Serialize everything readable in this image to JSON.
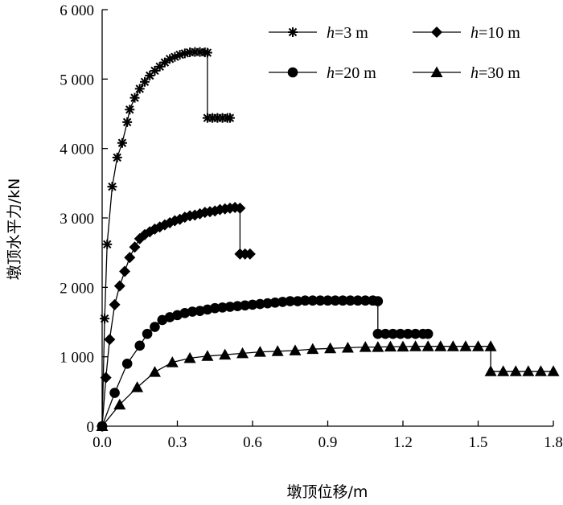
{
  "chart_data": {
    "type": "line",
    "xlabel": "墩顶位移/m",
    "ylabel": "墩顶水平力/kN",
    "xlim": [
      0,
      1.8
    ],
    "ylim": [
      0,
      6000
    ],
    "xticks": [
      0,
      0.3,
      0.6,
      0.9,
      1.2,
      1.5,
      1.8
    ],
    "xtick_labels": [
      "0.0",
      "0.3",
      "0.6",
      "0.9",
      "1.2",
      "1.5",
      "1.8"
    ],
    "yticks": [
      0,
      1000,
      2000,
      3000,
      4000,
      5000,
      6000
    ],
    "ytick_labels": [
      "0",
      "1 000",
      "2 000",
      "3 000",
      "4 000",
      "5 000",
      "6 000"
    ],
    "grid": false,
    "legend_position": "top-right",
    "series": [
      {
        "name": "h=3 m",
        "name_var": "h",
        "name_rest": "=3 m",
        "marker": "star",
        "points": [
          [
            0,
            0
          ],
          [
            0.01,
            1550
          ],
          [
            0.02,
            2620
          ],
          [
            0.04,
            3450
          ],
          [
            0.06,
            3870
          ],
          [
            0.08,
            4080
          ],
          [
            0.1,
            4380
          ],
          [
            0.11,
            4560
          ],
          [
            0.13,
            4730
          ],
          [
            0.15,
            4860
          ],
          [
            0.17,
            4960
          ],
          [
            0.19,
            5050
          ],
          [
            0.21,
            5120
          ],
          [
            0.23,
            5180
          ],
          [
            0.25,
            5240
          ],
          [
            0.27,
            5290
          ],
          [
            0.29,
            5320
          ],
          [
            0.31,
            5350
          ],
          [
            0.33,
            5370
          ],
          [
            0.35,
            5385
          ],
          [
            0.37,
            5390
          ],
          [
            0.39,
            5390
          ],
          [
            0.41,
            5385
          ],
          [
            0.42,
            5380
          ],
          [
            0.42,
            4440
          ],
          [
            0.44,
            4440
          ],
          [
            0.46,
            4440
          ],
          [
            0.48,
            4440
          ],
          [
            0.5,
            4440
          ],
          [
            0.51,
            4440
          ]
        ]
      },
      {
        "name": "h=10 m",
        "name_var": "h",
        "name_rest": "=10 m",
        "marker": "diamond",
        "points": [
          [
            0,
            0
          ],
          [
            0.015,
            700
          ],
          [
            0.03,
            1250
          ],
          [
            0.05,
            1750
          ],
          [
            0.07,
            2020
          ],
          [
            0.09,
            2230
          ],
          [
            0.11,
            2430
          ],
          [
            0.13,
            2580
          ],
          [
            0.15,
            2700
          ],
          [
            0.17,
            2760
          ],
          [
            0.19,
            2800
          ],
          [
            0.21,
            2840
          ],
          [
            0.23,
            2870
          ],
          [
            0.25,
            2900
          ],
          [
            0.27,
            2930
          ],
          [
            0.29,
            2960
          ],
          [
            0.31,
            2980
          ],
          [
            0.33,
            3010
          ],
          [
            0.35,
            3030
          ],
          [
            0.37,
            3040
          ],
          [
            0.39,
            3060
          ],
          [
            0.41,
            3080
          ],
          [
            0.43,
            3090
          ],
          [
            0.45,
            3100
          ],
          [
            0.47,
            3120
          ],
          [
            0.49,
            3130
          ],
          [
            0.51,
            3140
          ],
          [
            0.53,
            3150
          ],
          [
            0.55,
            3140
          ],
          [
            0.55,
            2480
          ],
          [
            0.57,
            2480
          ],
          [
            0.59,
            2480
          ]
        ]
      },
      {
        "name": "h=20 m",
        "name_var": "h",
        "name_rest": "=20 m",
        "marker": "circle",
        "points": [
          [
            0,
            0
          ],
          [
            0.05,
            480
          ],
          [
            0.1,
            900
          ],
          [
            0.15,
            1160
          ],
          [
            0.18,
            1330
          ],
          [
            0.21,
            1430
          ],
          [
            0.24,
            1530
          ],
          [
            0.27,
            1570
          ],
          [
            0.3,
            1600
          ],
          [
            0.33,
            1630
          ],
          [
            0.36,
            1650
          ],
          [
            0.39,
            1660
          ],
          [
            0.42,
            1680
          ],
          [
            0.45,
            1700
          ],
          [
            0.48,
            1710
          ],
          [
            0.51,
            1720
          ],
          [
            0.54,
            1730
          ],
          [
            0.57,
            1740
          ],
          [
            0.6,
            1750
          ],
          [
            0.63,
            1760
          ],
          [
            0.66,
            1770
          ],
          [
            0.69,
            1780
          ],
          [
            0.72,
            1790
          ],
          [
            0.75,
            1800
          ],
          [
            0.78,
            1800
          ],
          [
            0.81,
            1810
          ],
          [
            0.84,
            1810
          ],
          [
            0.87,
            1810
          ],
          [
            0.9,
            1810
          ],
          [
            0.93,
            1810
          ],
          [
            0.96,
            1810
          ],
          [
            0.99,
            1810
          ],
          [
            1.02,
            1810
          ],
          [
            1.05,
            1810
          ],
          [
            1.08,
            1810
          ],
          [
            1.1,
            1800
          ],
          [
            1.1,
            1330
          ],
          [
            1.13,
            1330
          ],
          [
            1.16,
            1330
          ],
          [
            1.19,
            1330
          ],
          [
            1.22,
            1330
          ],
          [
            1.25,
            1330
          ],
          [
            1.28,
            1330
          ],
          [
            1.3,
            1330
          ]
        ]
      },
      {
        "name": "h=30 m",
        "name_var": "h",
        "name_rest": "=30 m",
        "marker": "triangle",
        "points": [
          [
            0,
            0
          ],
          [
            0.07,
            310
          ],
          [
            0.14,
            560
          ],
          [
            0.21,
            780
          ],
          [
            0.28,
            920
          ],
          [
            0.35,
            980
          ],
          [
            0.42,
            1010
          ],
          [
            0.49,
            1030
          ],
          [
            0.56,
            1050
          ],
          [
            0.63,
            1070
          ],
          [
            0.7,
            1080
          ],
          [
            0.77,
            1090
          ],
          [
            0.84,
            1110
          ],
          [
            0.91,
            1120
          ],
          [
            0.98,
            1130
          ],
          [
            1.05,
            1140
          ],
          [
            1.1,
            1140
          ],
          [
            1.15,
            1145
          ],
          [
            1.2,
            1145
          ],
          [
            1.25,
            1150
          ],
          [
            1.3,
            1150
          ],
          [
            1.35,
            1150
          ],
          [
            1.4,
            1150
          ],
          [
            1.45,
            1150
          ],
          [
            1.5,
            1150
          ],
          [
            1.55,
            1150
          ],
          [
            1.55,
            790
          ],
          [
            1.6,
            790
          ],
          [
            1.65,
            790
          ],
          [
            1.7,
            790
          ],
          [
            1.75,
            790
          ],
          [
            1.8,
            790
          ]
        ]
      }
    ]
  }
}
